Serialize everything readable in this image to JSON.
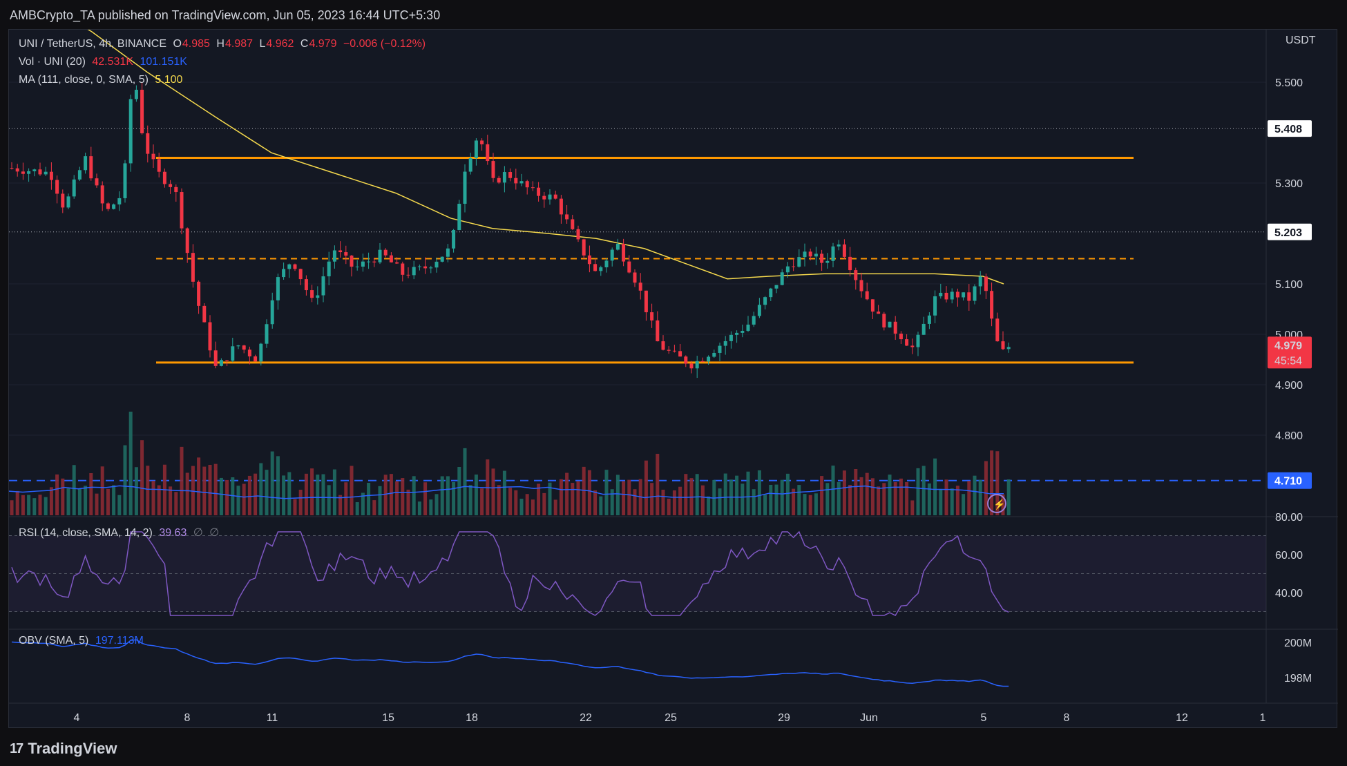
{
  "header": {
    "title": "AMBCrypto_TA published on TradingView.com, Jun 05, 2023 16:44 UTC+5:30"
  },
  "legend": {
    "symbol": "UNI / TetherUS, 4h, BINANCE",
    "o_label": "O",
    "o": "4.985",
    "h_label": "H",
    "h": "4.987",
    "l_label": "L",
    "l": "4.962",
    "c_label": "C",
    "c": "4.979",
    "change": "−0.006 (−0.12%)",
    "vol_label": "Vol · UNI (20)",
    "vol_value": "42.531K",
    "vol_ma": "101.151K",
    "ma_label": "MA (111, close, 0, SMA, 5)",
    "ma_value": "5.100",
    "rsi_label": "RSI (14, close, SMA, 14, 2)",
    "rsi_value": "39.63",
    "rsi_extra1": "∅",
    "rsi_extra2": "∅",
    "obv_label": "OBV (SMA, 5)",
    "obv_value": "197.113M"
  },
  "price_axis": {
    "currency": "USDT",
    "ticks": [
      "5.500",
      "5.300",
      "5.100",
      "5.000",
      "4.900",
      "4.800"
    ]
  },
  "rsi_axis": {
    "ticks": [
      "80.00",
      "60.00",
      "40.00"
    ]
  },
  "obv_axis": {
    "ticks": [
      "200M",
      "198M"
    ]
  },
  "time_axis": {
    "labels": [
      "4",
      "8",
      "11",
      "15",
      "18",
      "22",
      "25",
      "29",
      "Jun",
      "5",
      "8",
      "12",
      "1"
    ]
  },
  "markers": {
    "level_high": "5.408",
    "level_mid": "5.203",
    "current_price": "4.979",
    "countdown": "45:54",
    "blue_level": "4.710"
  },
  "footer": {
    "brand": "TradingView"
  },
  "colors": {
    "up": "#26a69a",
    "down": "#f23645",
    "ma": "#f5d94d",
    "level": "#ff9800",
    "blue": "#2962ff",
    "rsi": "#7e57c2",
    "obv": "#2962ff"
  },
  "chart_data": [
    {
      "type": "candlestick",
      "title": "UNI / TetherUS, 4h, BINANCE",
      "ylabel": "USDT",
      "ylim": [
        4.68,
        5.6
      ],
      "x_range": [
        "May 2, 2023",
        "Jun 13, 2023"
      ],
      "last_close": 4.979,
      "ma111_last": 5.1,
      "horizontal_levels": [
        {
          "value": 5.408,
          "style": "dotted",
          "color": "white"
        },
        {
          "value": 5.203,
          "style": "dotted",
          "color": "white"
        },
        {
          "value": 5.35,
          "style": "solid",
          "color": "orange"
        },
        {
          "value": 5.15,
          "style": "dashed",
          "color": "orange"
        },
        {
          "value": 4.944,
          "style": "solid",
          "color": "orange"
        },
        {
          "value": 4.71,
          "style": "dashed",
          "color": "blue"
        }
      ]
    },
    {
      "type": "line",
      "title": "RSI (14, close, SMA, 14, 2)",
      "ylim": [
        20,
        80
      ],
      "bands": [
        30,
        50,
        70
      ],
      "last": 39.63
    },
    {
      "type": "line",
      "title": "OBV (SMA, 5)",
      "ylim": [
        197.2,
        201.0
      ],
      "unit": "M",
      "last": 197.113
    }
  ]
}
